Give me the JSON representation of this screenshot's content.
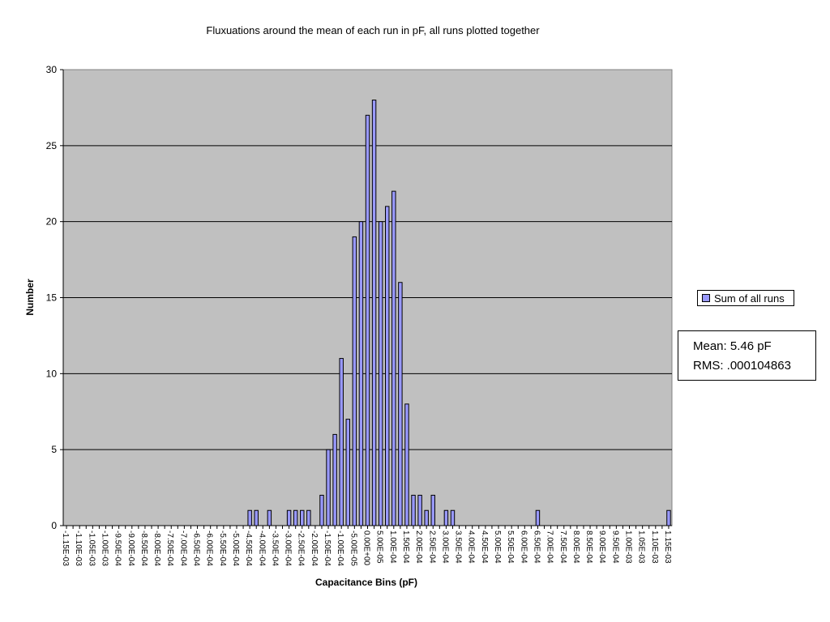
{
  "chart_data": {
    "type": "bar",
    "title": "Fluxuations around the mean of each run in pF, all runs plotted together",
    "xlabel": "Capacitance Bins (pF)",
    "ylabel": "Number",
    "ylim": [
      0,
      30
    ],
    "yticks": [
      0,
      5,
      10,
      15,
      20,
      25,
      30
    ],
    "grid": true,
    "legend_position": "right",
    "series": [
      {
        "name": "Sum of all runs",
        "color": "#9999ff"
      }
    ],
    "categories": [
      "-1.15E-03",
      "-1.125E-03",
      "-1.10E-03",
      "-1.075E-03",
      "-1.05E-03",
      "-1.025E-03",
      "-1.00E-03",
      "-9.75E-04",
      "-9.50E-04",
      "-9.25E-04",
      "-9.00E-04",
      "-8.75E-04",
      "-8.50E-04",
      "-8.25E-04",
      "-8.00E-04",
      "-7.75E-04",
      "-7.50E-04",
      "-7.25E-04",
      "-7.00E-04",
      "-6.75E-04",
      "-6.50E-04",
      "-6.25E-04",
      "-6.00E-04",
      "-5.75E-04",
      "-5.50E-04",
      "-5.25E-04",
      "-5.00E-04",
      "-4.75E-04",
      "-4.50E-04",
      "-4.25E-04",
      "-4.00E-04",
      "-3.75E-04",
      "-3.50E-04",
      "-3.25E-04",
      "-3.00E-04",
      "-2.75E-04",
      "-2.50E-04",
      "-2.25E-04",
      "-2.00E-04",
      "-1.75E-04",
      "-1.50E-04",
      "-1.25E-04",
      "-1.00E-04",
      "-7.50E-05",
      "-5.00E-05",
      "-2.50E-05",
      "0.00E+00",
      "2.50E-05",
      "5.00E-05",
      "7.50E-05",
      "1.00E-04",
      "1.25E-04",
      "1.50E-04",
      "1.75E-04",
      "2.00E-04",
      "2.25E-04",
      "2.50E-04",
      "2.75E-04",
      "3.00E-04",
      "3.25E-04",
      "3.50E-04",
      "3.75E-04",
      "4.00E-04",
      "4.25E-04",
      "4.50E-04",
      "4.75E-04",
      "5.00E-04",
      "5.25E-04",
      "5.50E-04",
      "5.75E-04",
      "6.00E-04",
      "6.25E-04",
      "6.50E-04",
      "6.75E-04",
      "7.00E-04",
      "7.25E-04",
      "7.50E-04",
      "7.75E-04",
      "8.00E-04",
      "8.25E-04",
      "8.50E-04",
      "8.75E-04",
      "9.00E-04",
      "9.25E-04",
      "9.50E-04",
      "9.75E-04",
      "1.00E-03",
      "1.025E-03",
      "1.05E-03",
      "1.075E-03",
      "1.10E-03",
      "1.125E-03",
      "1.15E-03"
    ],
    "values": [
      0,
      0,
      0,
      0,
      0,
      0,
      0,
      0,
      0,
      0,
      0,
      0,
      0,
      0,
      0,
      0,
      0,
      0,
      0,
      0,
      0,
      0,
      0,
      0,
      0,
      0,
      0,
      0,
      1,
      1,
      0,
      1,
      0,
      0,
      1,
      1,
      1,
      1,
      0,
      2,
      5,
      6,
      11,
      7,
      19,
      20,
      27,
      28,
      20,
      21,
      22,
      16,
      8,
      2,
      2,
      1,
      2,
      0,
      1,
      1,
      0,
      0,
      0,
      0,
      0,
      0,
      0,
      0,
      0,
      0,
      0,
      0,
      1,
      0,
      0,
      0,
      0,
      0,
      0,
      0,
      0,
      0,
      0,
      0,
      0,
      0,
      0,
      0,
      0,
      0,
      0,
      0,
      1
    ],
    "tick_labels": [
      "-1.15E-03",
      "-1.10E-03",
      "-1.05E-03",
      "-1.00E-03",
      "-9.50E-04",
      "-9.00E-04",
      "-8.50E-04",
      "-8.00E-04",
      "-7.50E-04",
      "-7.00E-04",
      "-6.50E-04",
      "-6.00E-04",
      "-5.50E-04",
      "-5.00E-04",
      "-4.50E-04",
      "-4.00E-04",
      "-3.50E-04",
      "-3.00E-04",
      "-2.50E-04",
      "-2.00E-04",
      "-1.50E-04",
      "-1.00E-04",
      "-5.00E-05",
      "0.00E+00",
      "5.00E-05",
      "1.00E-04",
      "1.50E-04",
      "2.00E-04",
      "2.50E-04",
      "3.00E-04",
      "3.50E-04",
      "4.00E-04",
      "4.50E-04",
      "5.00E-04",
      "5.50E-04",
      "6.00E-04",
      "6.50E-04",
      "7.00E-04",
      "7.50E-04",
      "8.00E-04",
      "8.50E-04",
      "9.00E-04",
      "9.50E-04",
      "1.00E-03",
      "1.05E-03",
      "1.10E-03",
      "1.15E-03"
    ]
  },
  "stats": {
    "mean_text": "Mean: 5.46 pF",
    "rms_text": "RMS: .000104863"
  },
  "colors": {
    "plot_background": "#c0c0c0",
    "bar_fill": "#9999ff",
    "bar_stroke": "#000000"
  }
}
